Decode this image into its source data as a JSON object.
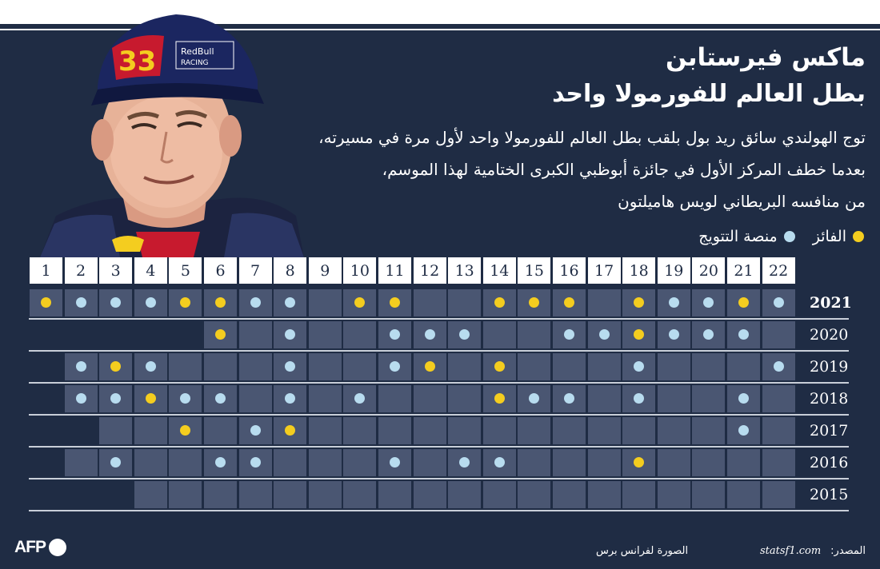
{
  "title": {
    "name": "ماكس فيرستابن",
    "subtitle": "بطل العالم للفورمولا واحد"
  },
  "description": [
    "توج الهولندي سائق ريد بول بلقب بطل العالم للفورمولا واحد لأول مرة في مسيرته،",
    "بعدما خطف المركز الأول في جائزة أبوظبي الكبرى الختامية لهذا الموسم،",
    "من منافسه البريطاني لويس هاميلتون"
  ],
  "legend": {
    "winner_label": "الفائز",
    "podium_label": "منصة التتويج",
    "winner_color": "#f4cd1f",
    "podium_color": "#b8dcef"
  },
  "portrait": {
    "cap_number": "33",
    "cap_brand": "RedBull",
    "cap_brand_sub": "RACING"
  },
  "races": [
    "1",
    "2",
    "3",
    "4",
    "5",
    "6",
    "7",
    "8",
    "9",
    "10",
    "11",
    "12",
    "13",
    "14",
    "15",
    "16",
    "17",
    "18",
    "19",
    "20",
    "21",
    "22"
  ],
  "seasons": [
    {
      "year": "2021",
      "current": true,
      "start": 1,
      "count": 22,
      "results": [
        "W",
        "P",
        "P",
        "P",
        "W",
        "W",
        "P",
        "P",
        "-",
        "W",
        "W",
        "-",
        "-",
        "W",
        "W",
        "W",
        "-",
        "W",
        "P",
        "P",
        "W",
        "P"
      ]
    },
    {
      "year": "2020",
      "current": false,
      "start": 6,
      "count": 17,
      "results": [
        "-",
        "-",
        "-",
        "-",
        "-",
        "W",
        "-",
        "P",
        "-",
        "-",
        "P",
        "P",
        "P",
        "-",
        "-",
        "P",
        "P",
        "W",
        "P",
        "P",
        "P",
        "-"
      ]
    },
    {
      "year": "2019",
      "current": false,
      "start": 2,
      "count": 21,
      "results": [
        "-",
        "P",
        "W",
        "P",
        "-",
        "-",
        "-",
        "P",
        "-",
        "-",
        "P",
        "W",
        "-",
        "W",
        "-",
        "-",
        "-",
        "P",
        "-",
        "-",
        "-",
        "P"
      ]
    },
    {
      "year": "2018",
      "current": false,
      "start": 2,
      "count": 21,
      "results": [
        "-",
        "P",
        "P",
        "W",
        "P",
        "P",
        "-",
        "P",
        "-",
        "P",
        "-",
        "-",
        "-",
        "W",
        "P",
        "P",
        "-",
        "P",
        "-",
        "-",
        "P",
        "-"
      ]
    },
    {
      "year": "2017",
      "current": false,
      "start": 3,
      "count": 20,
      "results": [
        "-",
        "-",
        "-",
        "-",
        "W",
        "-",
        "P",
        "W",
        "-",
        "-",
        "-",
        "-",
        "-",
        "-",
        "-",
        "-",
        "-",
        "-",
        "-",
        "-",
        "P",
        "-"
      ]
    },
    {
      "year": "2016",
      "current": false,
      "start": 2,
      "count": 21,
      "results": [
        "-",
        "-",
        "P",
        "-",
        "-",
        "P",
        "P",
        "-",
        "-",
        "-",
        "P",
        "-",
        "P",
        "P",
        "-",
        "-",
        "-",
        "W",
        "-",
        "-",
        "-",
        "-"
      ]
    },
    {
      "year": "2015",
      "current": false,
      "start": 4,
      "count": 19,
      "results": [
        "-",
        "-",
        "-",
        "-",
        "-",
        "-",
        "-",
        "-",
        "-",
        "-",
        "-",
        "-",
        "-",
        "-",
        "-",
        "-",
        "-",
        "-",
        "-",
        "-",
        "-",
        "-"
      ]
    }
  ],
  "footer": {
    "source_label": "المصدر:",
    "source_site": "statsf1.com",
    "photo_credit": "الصورة لفرانس برس",
    "agency": "AFP"
  }
}
